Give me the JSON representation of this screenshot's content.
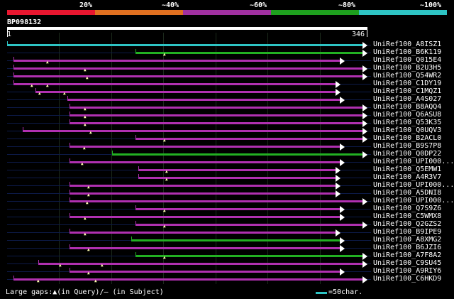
{
  "scale": {
    "labels": [
      "20%",
      "~40%",
      "~60%",
      "~80%",
      "~100%"
    ],
    "colors": [
      "#e8162f",
      "#e07020",
      "#a030a0",
      "#1ea01e",
      "#2ec4c4"
    ]
  },
  "query": {
    "id": "BP098132",
    "start": "1",
    "end": "346"
  },
  "colors": {
    "magenta": "#b030b0",
    "green": "#22b022",
    "cyan": "#2ec4c4",
    "arrow_fill": "#ffffff"
  },
  "hits": [
    {
      "id": "UniRef100_A8ISZ1",
      "color": "cyan",
      "start": 1,
      "end": 346,
      "gaps": []
    },
    {
      "id": "UniRef100_B6K119",
      "color": "green",
      "start": 124,
      "end": 346,
      "gaps": [
        152
      ]
    },
    {
      "id": "UniRef100_Q015E4",
      "color": "magenta",
      "start": 7,
      "end": 324,
      "gaps": [
        40
      ]
    },
    {
      "id": "UniRef100_B2U3H5",
      "color": "magenta",
      "start": 7,
      "end": 346,
      "gaps": [
        76
      ]
    },
    {
      "id": "UniRef100_Q54WR2",
      "color": "magenta",
      "start": 7,
      "end": 346,
      "gaps": [
        78
      ]
    },
    {
      "id": "UniRef100_C1DY19",
      "color": "magenta",
      "start": 7,
      "end": 320,
      "gaps": [
        25,
        40
      ]
    },
    {
      "id": "UniRef100_C1MQZ1",
      "color": "magenta",
      "start": 28,
      "end": 320,
      "gaps": [
        32,
        56
      ]
    },
    {
      "id": "UniRef100_A4S027",
      "color": "magenta",
      "start": 59,
      "end": 324,
      "gaps": []
    },
    {
      "id": "UniRef100_B8AQQ4",
      "color": "magenta",
      "start": 61,
      "end": 346,
      "gaps": [
        76
      ]
    },
    {
      "id": "UniRef100_Q6ASU8",
      "color": "magenta",
      "start": 61,
      "end": 346,
      "gaps": [
        76
      ]
    },
    {
      "id": "UniRef100_Q53K35",
      "color": "magenta",
      "start": 61,
      "end": 346,
      "gaps": [
        76
      ]
    },
    {
      "id": "UniRef100_Q0UQV3",
      "color": "magenta",
      "start": 16,
      "end": 346,
      "gaps": [
        81
      ]
    },
    {
      "id": "UniRef100_B2ACL0",
      "color": "magenta",
      "start": 124,
      "end": 346,
      "gaps": [
        152
      ]
    },
    {
      "id": "UniRef100_B9S7P8",
      "color": "magenta",
      "start": 61,
      "end": 324,
      "gaps": [
        75
      ]
    },
    {
      "id": "UniRef100_Q0DP22",
      "color": "green",
      "start": 102,
      "end": 346,
      "gaps": []
    },
    {
      "id": "UniRef100_UPI000...",
      "color": "magenta",
      "start": 61,
      "end": 324,
      "gaps": [
        73
      ]
    },
    {
      "id": "UniRef100_Q5EMW1",
      "color": "magenta",
      "start": 127,
      "end": 320,
      "gaps": [
        154
      ]
    },
    {
      "id": "UniRef100_A4R3V7",
      "color": "magenta",
      "start": 127,
      "end": 320,
      "gaps": [
        154
      ]
    },
    {
      "id": "UniRef100_UPI000...",
      "color": "magenta",
      "start": 61,
      "end": 320,
      "gaps": [
        79
      ]
    },
    {
      "id": "UniRef100_A5DNI8",
      "color": "magenta",
      "start": 61,
      "end": 320,
      "gaps": [
        79
      ]
    },
    {
      "id": "UniRef100_UPI000...",
      "color": "magenta",
      "start": 61,
      "end": 346,
      "gaps": [
        78
      ]
    },
    {
      "id": "UniRef100_Q7S9Z6",
      "color": "magenta",
      "start": 124,
      "end": 324,
      "gaps": [
        152
      ]
    },
    {
      "id": "UniRef100_C5WMX8",
      "color": "magenta",
      "start": 61,
      "end": 324,
      "gaps": [
        76
      ]
    },
    {
      "id": "UniRef100_Q2GZS2",
      "color": "magenta",
      "start": 124,
      "end": 346,
      "gaps": [
        152
      ]
    },
    {
      "id": "UniRef100_B9IPE9",
      "color": "magenta",
      "start": 61,
      "end": 320,
      "gaps": [
        76
      ]
    },
    {
      "id": "UniRef100_A8XMG2",
      "color": "green",
      "start": 120,
      "end": 324,
      "gaps": []
    },
    {
      "id": "UniRef100_B6JZI6",
      "color": "magenta",
      "start": 61,
      "end": 324,
      "gaps": [
        79
      ]
    },
    {
      "id": "UniRef100_A7F8A2",
      "color": "green",
      "start": 124,
      "end": 346,
      "gaps": [
        152
      ]
    },
    {
      "id": "UniRef100_C9SU45",
      "color": "magenta",
      "start": 31,
      "end": 346,
      "gaps": [
        52,
        92
      ]
    },
    {
      "id": "UniRef100_A9RIY6",
      "color": "magenta",
      "start": 61,
      "end": 324,
      "gaps": [
        79
      ]
    },
    {
      "id": "UniRef100_C6HKD9",
      "color": "magenta",
      "start": 7,
      "end": 346,
      "gaps": [
        31,
        86
      ]
    }
  ],
  "footer": {
    "gaps_text": "Large gaps:▲(in Query)/— (in Subject)",
    "legend_text": "=50char."
  }
}
